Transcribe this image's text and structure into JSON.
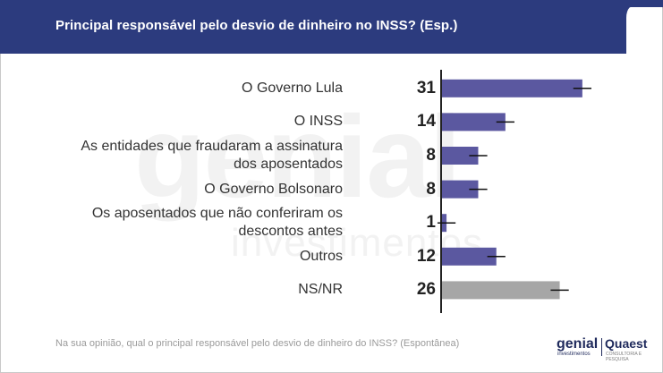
{
  "header": {
    "title": "Principal responsável pelo desvio de dinheiro no INSS? (Esp.)"
  },
  "colors": {
    "header_bg": "#2c3b7e",
    "bar_primary": "#5b58a0",
    "bar_neutral": "#a6a6a6",
    "error_bar": "#111111",
    "axis": "#222222"
  },
  "chart_data": {
    "type": "bar",
    "orientation": "horizontal",
    "title": "Principal responsável pelo desvio de dinheiro no INSS? (Esp.)",
    "categories": [
      [
        "O Governo Lula"
      ],
      [
        "O INSS"
      ],
      [
        "As entidades que fraudaram a assinatura",
        "dos aposentados"
      ],
      [
        "O Governo Bolsonaro"
      ],
      [
        "Os aposentados que não conferiram os",
        "descontos antes"
      ],
      [
        "Outros"
      ],
      [
        "NS/NR"
      ]
    ],
    "values": [
      31,
      14,
      8,
      8,
      1,
      12,
      26
    ],
    "value_labels": [
      "31",
      "14",
      "8",
      "8",
      "1",
      "12",
      "26"
    ],
    "error_margin": 2,
    "bar_colors": [
      "#5b58a0",
      "#5b58a0",
      "#5b58a0",
      "#5b58a0",
      "#5b58a0",
      "#5b58a0",
      "#a6a6a6"
    ],
    "xlim": [
      0,
      40
    ],
    "grid": false,
    "legend": "none"
  },
  "footer": {
    "note": "Na sua opinião, qual o principal responsável pelo desvio de dinheiro do INSS? (Espontânea)",
    "logo_genial": "genial",
    "logo_genial_sub": "investimentos",
    "logo_quaest": "Quaest",
    "logo_quaest_sub": "CONSULTORIA E PESQUISA"
  },
  "watermark": {
    "main": "genial",
    "sub": "investimentos"
  }
}
